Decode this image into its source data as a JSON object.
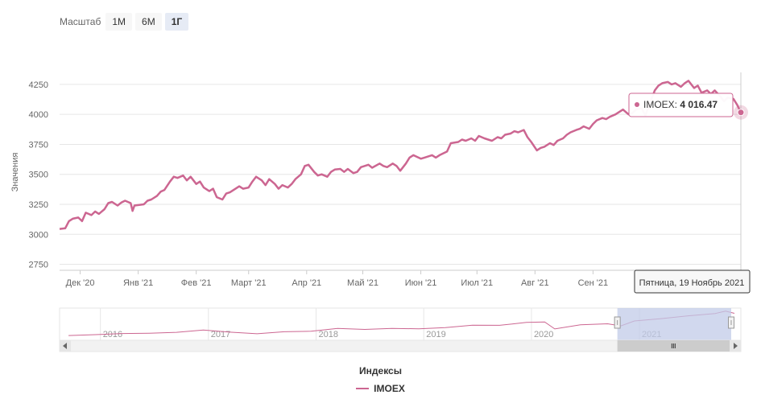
{
  "zoom": {
    "label": "Масштаб",
    "buttons": [
      "1М",
      "6М",
      "1Г"
    ],
    "active": "1Г"
  },
  "tooltip": {
    "series": "IMOEX",
    "value": "4 016.47",
    "date": "Пятница, 19 Ноябрь 2021"
  },
  "legend": {
    "title": "Индексы"
  },
  "colors": {
    "series": "#cc6691",
    "navigator_mask": "#c2cbe8",
    "grid": "#e6e6e6"
  },
  "chart_data": {
    "type": "line",
    "ylabel": "Значения",
    "ylim": [
      2700,
      4350
    ],
    "yticks": [
      2750,
      3000,
      3250,
      3500,
      3750,
      4000,
      4250
    ],
    "xlim": [
      "2020-11-20",
      "2021-11-19"
    ],
    "xticks": [
      {
        "label": "Дек '20",
        "date": "2020-12-01"
      },
      {
        "label": "Янв '21",
        "date": "2021-01-01"
      },
      {
        "label": "Фев '21",
        "date": "2021-02-01"
      },
      {
        "label": "Март '21",
        "date": "2021-03-01"
      },
      {
        "label": "Апр '21",
        "date": "2021-04-01"
      },
      {
        "label": "Май '21",
        "date": "2021-05-01"
      },
      {
        "label": "Июн '21",
        "date": "2021-06-01"
      },
      {
        "label": "Июл '21",
        "date": "2021-07-01"
      },
      {
        "label": "Авг '21",
        "date": "2021-08-01"
      },
      {
        "label": "Сен '21",
        "date": "2021-09-01"
      }
    ],
    "series": [
      {
        "name": "IMOEX",
        "points": [
          [
            "2020-11-20",
            3045
          ],
          [
            "2020-11-23",
            3050
          ],
          [
            "2020-11-25",
            3110
          ],
          [
            "2020-11-27",
            3130
          ],
          [
            "2020-11-30",
            3140
          ],
          [
            "2020-12-02",
            3110
          ],
          [
            "2020-12-04",
            3180
          ],
          [
            "2020-12-07",
            3160
          ],
          [
            "2020-12-09",
            3190
          ],
          [
            "2020-12-11",
            3170
          ],
          [
            "2020-12-14",
            3210
          ],
          [
            "2020-12-16",
            3260
          ],
          [
            "2020-12-18",
            3270
          ],
          [
            "2020-12-21",
            3240
          ],
          [
            "2020-12-23",
            3265
          ],
          [
            "2020-12-25",
            3280
          ],
          [
            "2020-12-28",
            3260
          ],
          [
            "2020-12-29",
            3195
          ],
          [
            "2020-12-30",
            3240
          ],
          [
            "2021-01-04",
            3250
          ],
          [
            "2021-01-06",
            3280
          ],
          [
            "2021-01-08",
            3290
          ],
          [
            "2021-01-11",
            3320
          ],
          [
            "2021-01-13",
            3355
          ],
          [
            "2021-01-15",
            3370
          ],
          [
            "2021-01-18",
            3440
          ],
          [
            "2021-01-20",
            3480
          ],
          [
            "2021-01-22",
            3470
          ],
          [
            "2021-01-25",
            3490
          ],
          [
            "2021-01-27",
            3450
          ],
          [
            "2021-01-29",
            3480
          ],
          [
            "2021-02-01",
            3420
          ],
          [
            "2021-02-03",
            3440
          ],
          [
            "2021-02-05",
            3390
          ],
          [
            "2021-02-08",
            3360
          ],
          [
            "2021-02-10",
            3380
          ],
          [
            "2021-02-12",
            3310
          ],
          [
            "2021-02-15",
            3290
          ],
          [
            "2021-02-17",
            3340
          ],
          [
            "2021-02-19",
            3350
          ],
          [
            "2021-02-22",
            3380
          ],
          [
            "2021-02-24",
            3400
          ],
          [
            "2021-02-26",
            3380
          ],
          [
            "2021-03-01",
            3390
          ],
          [
            "2021-03-03",
            3440
          ],
          [
            "2021-03-05",
            3480
          ],
          [
            "2021-03-08",
            3450
          ],
          [
            "2021-03-10",
            3410
          ],
          [
            "2021-03-12",
            3460
          ],
          [
            "2021-03-15",
            3420
          ],
          [
            "2021-03-17",
            3380
          ],
          [
            "2021-03-19",
            3410
          ],
          [
            "2021-03-22",
            3390
          ],
          [
            "2021-03-24",
            3420
          ],
          [
            "2021-03-26",
            3460
          ],
          [
            "2021-03-29",
            3500
          ],
          [
            "2021-03-31",
            3570
          ],
          [
            "2021-04-02",
            3580
          ],
          [
            "2021-04-05",
            3520
          ],
          [
            "2021-04-07",
            3490
          ],
          [
            "2021-04-09",
            3500
          ],
          [
            "2021-04-12",
            3480
          ],
          [
            "2021-04-14",
            3520
          ],
          [
            "2021-04-16",
            3540
          ],
          [
            "2021-04-19",
            3545
          ],
          [
            "2021-04-21",
            3520
          ],
          [
            "2021-04-23",
            3545
          ],
          [
            "2021-04-26",
            3510
          ],
          [
            "2021-04-28",
            3520
          ],
          [
            "2021-04-30",
            3560
          ],
          [
            "2021-05-04",
            3580
          ],
          [
            "2021-05-06",
            3555
          ],
          [
            "2021-05-10",
            3590
          ],
          [
            "2021-05-12",
            3570
          ],
          [
            "2021-05-14",
            3560
          ],
          [
            "2021-05-17",
            3590
          ],
          [
            "2021-05-19",
            3570
          ],
          [
            "2021-05-21",
            3530
          ],
          [
            "2021-05-24",
            3590
          ],
          [
            "2021-05-26",
            3640
          ],
          [
            "2021-05-28",
            3660
          ],
          [
            "2021-06-01",
            3630
          ],
          [
            "2021-06-03",
            3640
          ],
          [
            "2021-06-07",
            3660
          ],
          [
            "2021-06-09",
            3640
          ],
          [
            "2021-06-11",
            3660
          ],
          [
            "2021-06-15",
            3690
          ],
          [
            "2021-06-17",
            3760
          ],
          [
            "2021-06-21",
            3770
          ],
          [
            "2021-06-23",
            3790
          ],
          [
            "2021-06-25",
            3780
          ],
          [
            "2021-06-28",
            3800
          ],
          [
            "2021-06-30",
            3780
          ],
          [
            "2021-07-02",
            3820
          ],
          [
            "2021-07-05",
            3800
          ],
          [
            "2021-07-07",
            3790
          ],
          [
            "2021-07-09",
            3780
          ],
          [
            "2021-07-12",
            3810
          ],
          [
            "2021-07-14",
            3800
          ],
          [
            "2021-07-16",
            3830
          ],
          [
            "2021-07-19",
            3840
          ],
          [
            "2021-07-21",
            3860
          ],
          [
            "2021-07-23",
            3850
          ],
          [
            "2021-07-26",
            3870
          ],
          [
            "2021-07-28",
            3810
          ],
          [
            "2021-07-30",
            3770
          ],
          [
            "2021-08-02",
            3700
          ],
          [
            "2021-08-04",
            3720
          ],
          [
            "2021-08-06",
            3730
          ],
          [
            "2021-08-09",
            3760
          ],
          [
            "2021-08-11",
            3745
          ],
          [
            "2021-08-13",
            3780
          ],
          [
            "2021-08-16",
            3800
          ],
          [
            "2021-08-18",
            3830
          ],
          [
            "2021-08-20",
            3850
          ],
          [
            "2021-08-23",
            3870
          ],
          [
            "2021-08-25",
            3880
          ],
          [
            "2021-08-27",
            3900
          ],
          [
            "2021-08-30",
            3880
          ],
          [
            "2021-09-01",
            3920
          ],
          [
            "2021-09-03",
            3950
          ],
          [
            "2021-09-06",
            3970
          ],
          [
            "2021-09-08",
            3960
          ],
          [
            "2021-09-10",
            3980
          ],
          [
            "2021-09-13",
            4000
          ],
          [
            "2021-09-15",
            4020
          ],
          [
            "2021-09-17",
            4040
          ],
          [
            "2021-09-20",
            4000
          ],
          [
            "2021-09-22",
            4010
          ],
          [
            "2021-09-24",
            4040
          ],
          [
            "2021-09-27",
            4050
          ],
          [
            "2021-09-29",
            3990
          ],
          [
            "2021-10-01",
            4080
          ],
          [
            "2021-10-04",
            4200
          ],
          [
            "2021-10-06",
            4240
          ],
          [
            "2021-10-08",
            4260
          ],
          [
            "2021-10-11",
            4270
          ],
          [
            "2021-10-13",
            4250
          ],
          [
            "2021-10-15",
            4260
          ],
          [
            "2021-10-18",
            4230
          ],
          [
            "2021-10-20",
            4260
          ],
          [
            "2021-10-22",
            4280
          ],
          [
            "2021-10-25",
            4220
          ],
          [
            "2021-10-27",
            4240
          ],
          [
            "2021-10-29",
            4180
          ],
          [
            "2021-11-01",
            4200
          ],
          [
            "2021-11-03",
            4170
          ],
          [
            "2021-11-05",
            4200
          ],
          [
            "2021-11-08",
            4150
          ],
          [
            "2021-11-10",
            4110
          ],
          [
            "2021-11-12",
            4140
          ],
          [
            "2021-11-15",
            4130
          ],
          [
            "2021-11-17",
            4080
          ],
          [
            "2021-11-19",
            4016.47
          ]
        ]
      }
    ],
    "navigator": {
      "years": [
        "2016",
        "2017",
        "2018",
        "2019",
        "2020",
        "2021"
      ],
      "range": [
        "2015-09-01",
        "2021-11-19"
      ],
      "selected": [
        "2020-11-20",
        "2021-11-19"
      ],
      "points": [
        [
          "2015-09-15",
          1650
        ],
        [
          "2015-12-15",
          1740
        ],
        [
          "2016-03-15",
          1860
        ],
        [
          "2016-06-15",
          1900
        ],
        [
          "2016-09-15",
          1990
        ],
        [
          "2016-12-15",
          2230
        ],
        [
          "2017-03-15",
          2010
        ],
        [
          "2017-06-15",
          1840
        ],
        [
          "2017-09-15",
          2050
        ],
        [
          "2017-12-15",
          2100
        ],
        [
          "2018-03-15",
          2400
        ],
        [
          "2018-06-15",
          2300
        ],
        [
          "2018-09-15",
          2400
        ],
        [
          "2018-12-15",
          2370
        ],
        [
          "2019-03-15",
          2500
        ],
        [
          "2019-06-15",
          2750
        ],
        [
          "2019-09-15",
          2740
        ],
        [
          "2019-12-15",
          3050
        ],
        [
          "2020-02-15",
          3100
        ],
        [
          "2020-03-20",
          2350
        ],
        [
          "2020-06-15",
          2800
        ],
        [
          "2020-09-15",
          2900
        ],
        [
          "2020-10-30",
          2680
        ],
        [
          "2020-12-15",
          3200
        ],
        [
          "2021-03-15",
          3450
        ],
        [
          "2021-06-15",
          3750
        ],
        [
          "2021-09-15",
          4000
        ],
        [
          "2021-10-20",
          4250
        ],
        [
          "2021-11-19",
          4016
        ]
      ]
    }
  }
}
